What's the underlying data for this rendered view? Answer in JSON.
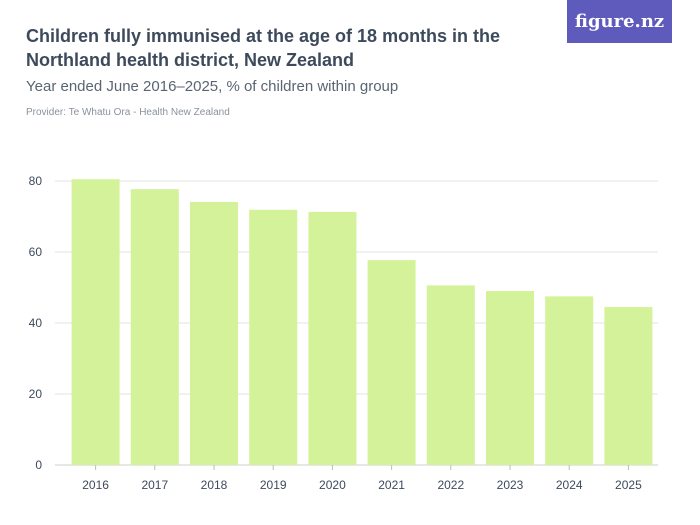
{
  "header": {
    "title": "Children fully immunised at the age of 18 months in the Northland health district, New Zealand",
    "subtitle": "Year ended June 2016–2025, % of children within group",
    "provider": "Provider: Te Whatu Ora - Health New Zealand",
    "logo": "figure.nz"
  },
  "colors": {
    "bar": "#d4f29a",
    "grid": "#e3e3e3",
    "text": "#3d4a5c",
    "logo_bg": "#5f5bbd"
  },
  "chart_data": {
    "type": "bar",
    "title": "Children fully immunised at the age of 18 months in the Northland health district, New Zealand",
    "subtitle": "Year ended June 2016–2025, % of children within group",
    "categories": [
      "2016",
      "2017",
      "2018",
      "2019",
      "2020",
      "2021",
      "2022",
      "2023",
      "2024",
      "2025"
    ],
    "values": [
      80.5,
      77.7,
      74.1,
      71.9,
      71.3,
      57.7,
      50.6,
      49.0,
      47.5,
      44.5
    ],
    "yticks": [
      0,
      20,
      40,
      60,
      80
    ],
    "ylim": [
      0,
      80
    ],
    "grid": true,
    "legend": "none"
  }
}
